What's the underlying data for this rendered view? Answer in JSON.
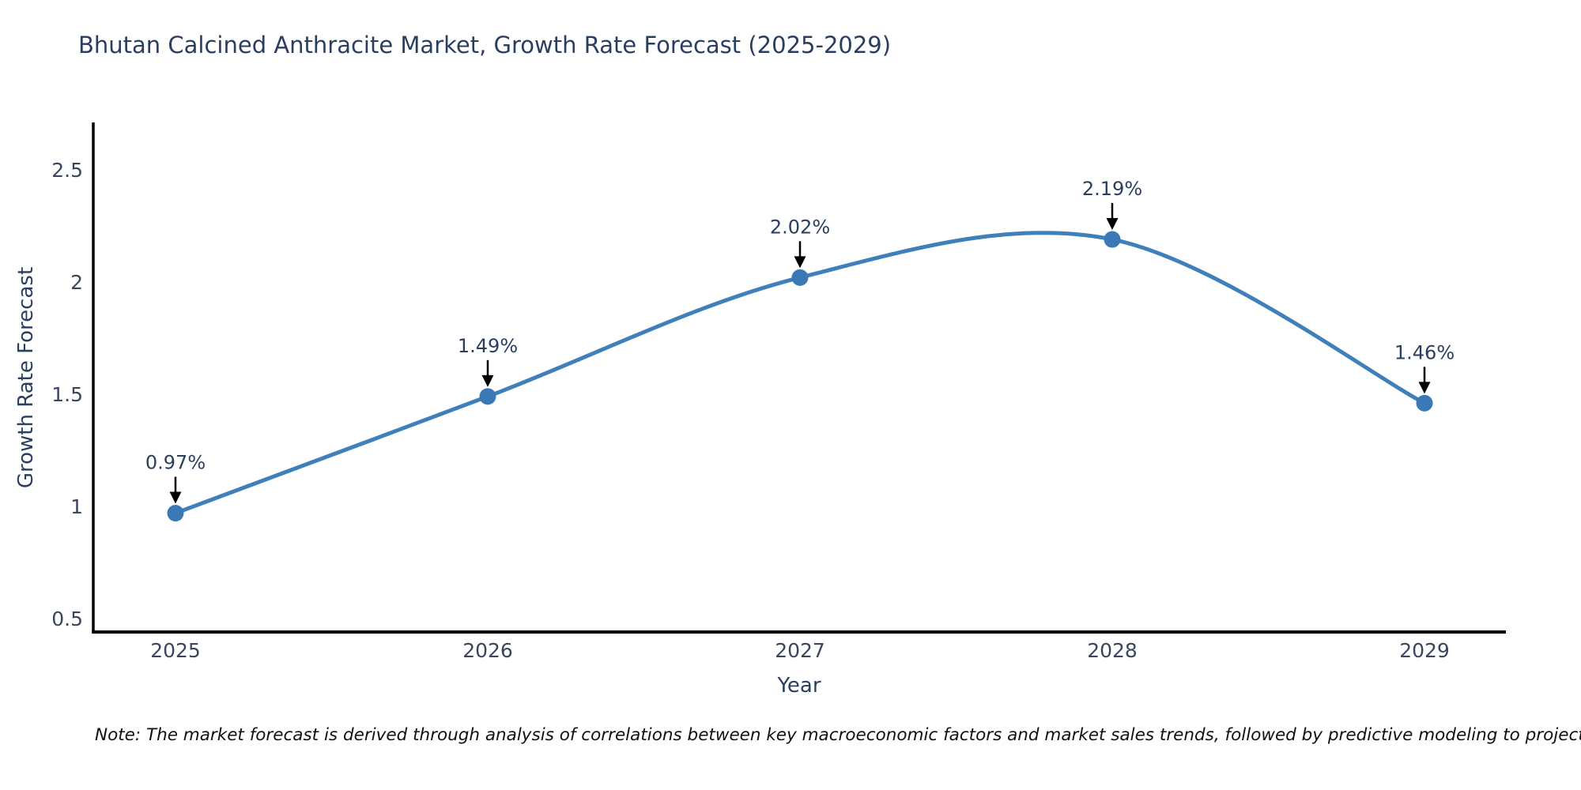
{
  "title": "Bhutan Calcined Anthracite Market, Growth Rate Forecast (2025-2029)",
  "note": "Note: The market forecast is derived through analysis of correlations between key macroeconomic factors and market sales trends, followed by predictive modeling to project future sales",
  "chart_data": {
    "type": "line",
    "title": "Bhutan Calcined Anthracite Market, Growth Rate Forecast (2025-2029)",
    "xlabel": "Year",
    "ylabel": "Growth Rate Forecast",
    "x": [
      2025,
      2026,
      2027,
      2028,
      2029
    ],
    "series": [
      {
        "name": "Growth Rate Forecast",
        "values": [
          0.97,
          1.49,
          2.02,
          2.19,
          1.46
        ]
      }
    ],
    "point_labels": [
      "0.97%",
      "1.49%",
      "2.02%",
      "2.19%",
      "1.46%"
    ],
    "yticks": [
      0.5,
      1,
      1.5,
      2,
      2.5
    ],
    "ylim": [
      0.44,
      2.71
    ],
    "line_shape": "spline",
    "grid": false,
    "legend": "none",
    "colors": {
      "line": "#3f7fba",
      "marker": "#3a79b5",
      "annotation_text": "#2a3f5f",
      "tick_text": "#39465e",
      "axis_line": "#000000",
      "arrow": "#000000",
      "title_text": "#2a3f5f"
    }
  }
}
